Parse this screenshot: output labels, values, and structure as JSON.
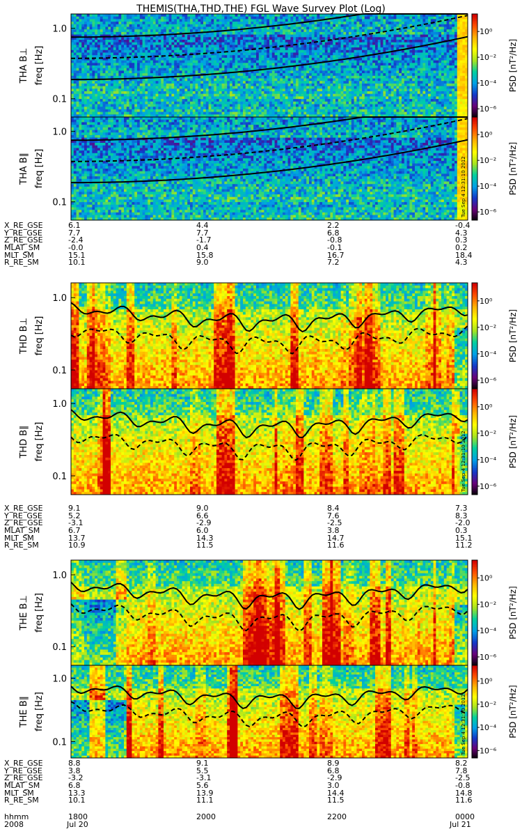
{
  "chart_data": {
    "type": "heatmap",
    "title": "THEMIS(THA,THD,THE) FGL Wave Survey Plot (Log)",
    "x_axis": {
      "range_label": [
        "1800",
        "0000"
      ],
      "tick_labels": [
        "1800",
        "2000",
        "2200",
        "0000"
      ],
      "date_labels": [
        "Jul 20",
        "",
        "",
        "Jul 21"
      ],
      "row_label_time": "hhmm",
      "row_label_year": "2008"
    },
    "colorbar": {
      "label": "PSD [nT²/Hz]",
      "scale": "log",
      "tick_labels": [
        "10⁰",
        "10⁻²",
        "10⁻⁴",
        "10⁻⁶"
      ],
      "colors": [
        "#000000",
        "#6a0078",
        "#1438c8",
        "#00a0e6",
        "#00d0a0",
        "#a8e41e",
        "#ffff00",
        "#ffb400",
        "#ff5000",
        "#d20000"
      ]
    },
    "stamp_text": "Tue Sep  4 12:31:10 2012",
    "panels": [
      {
        "probe": "THA",
        "component": "B⊥",
        "title": "THA B⊥",
        "ylabel": "freq [Hz]",
        "yscale": "log",
        "ylim": [
          0.055,
          1.6
        ],
        "ytick_labels": [
          "1.0",
          "0.1"
        ],
        "intensity": "low"
      },
      {
        "probe": "THA",
        "component": "B∥",
        "title": "THA B∥",
        "ylabel": "freq [Hz]",
        "yscale": "log",
        "ylim": [
          0.055,
          1.6
        ],
        "ytick_labels": [
          "1.0",
          "0.1"
        ],
        "intensity": "low"
      },
      {
        "probe": "THD",
        "component": "B⊥",
        "title": "THD B⊥",
        "ylabel": "freq [Hz]",
        "yscale": "log",
        "ylim": [
          0.055,
          1.6
        ],
        "ytick_labels": [
          "1.0",
          "0.1"
        ],
        "intensity": "high"
      },
      {
        "probe": "THD",
        "component": "B∥",
        "title": "THD B∥",
        "ylabel": "freq [Hz]",
        "yscale": "log",
        "ylim": [
          0.055,
          1.6
        ],
        "ytick_labels": [
          "1.0",
          "0.1"
        ],
        "intensity": "high"
      },
      {
        "probe": "THE",
        "component": "B⊥",
        "title": "THE B⊥",
        "ylabel": "freq [Hz]",
        "yscale": "log",
        "ylim": [
          0.055,
          1.6
        ],
        "ytick_labels": [
          "1.0",
          "0.1"
        ],
        "intensity": "high"
      },
      {
        "probe": "THE",
        "component": "B∥",
        "title": "THE B∥",
        "ylabel": "freq [Hz]",
        "yscale": "log",
        "ylim": [
          0.055,
          1.6
        ],
        "ytick_labels": [
          "1.0",
          "0.1"
        ],
        "intensity": "high"
      }
    ]
  },
  "ephemeris": [
    {
      "probe": "THA",
      "rows": [
        {
          "label": "X_RE_GSE",
          "values": [
            "6.1",
            "4.4",
            "2.2",
            "-0.4"
          ]
        },
        {
          "label": "Y_RE_GSE",
          "values": [
            "7.7",
            "7.7",
            "6.8",
            "4.3"
          ]
        },
        {
          "label": "Z_RE_GSE",
          "values": [
            "-2.4",
            "-1.7",
            "-0.8",
            "0.3"
          ]
        },
        {
          "label": "MLAT_SM",
          "values": [
            "-0.0",
            "0.4",
            "-0.1",
            "0.2"
          ]
        },
        {
          "label": "MLT_SM",
          "values": [
            "15.1",
            "15.8",
            "16.7",
            "18.4"
          ]
        },
        {
          "label": "R_RE_SM",
          "values": [
            "10.1",
            "9.0",
            "7.2",
            "4.3"
          ]
        }
      ]
    },
    {
      "probe": "THD",
      "rows": [
        {
          "label": "X_RE_GSE",
          "values": [
            "9.1",
            "9.0",
            "8.4",
            "7.3"
          ]
        },
        {
          "label": "Y_RE_GSE",
          "values": [
            "5.2",
            "6.6",
            "7.6",
            "8.3"
          ]
        },
        {
          "label": "Z_RE_GSE",
          "values": [
            "-3.1",
            "-2.9",
            "-2.5",
            "-2.0"
          ]
        },
        {
          "label": "MLAT_SM",
          "values": [
            "6.7",
            "6.0",
            "3.8",
            "0.3"
          ]
        },
        {
          "label": "MLT_SM",
          "values": [
            "13.7",
            "14.3",
            "14.7",
            "15.1"
          ]
        },
        {
          "label": "R_RE_SM",
          "values": [
            "10.9",
            "11.5",
            "11.6",
            "11.2"
          ]
        }
      ]
    },
    {
      "probe": "THE",
      "rows": [
        {
          "label": "X_RE_GSE",
          "values": [
            "8.8",
            "9.1",
            "8.9",
            "8.2"
          ]
        },
        {
          "label": "Y_RE_GSE",
          "values": [
            "3.8",
            "5.5",
            "6.8",
            "7.8"
          ]
        },
        {
          "label": "Z_RE_GSE",
          "values": [
            "-3.2",
            "-3.1",
            "-2.9",
            "-2.5"
          ]
        },
        {
          "label": "MLAT_SM",
          "values": [
            "6.8",
            "5.6",
            "3.0",
            "-0.8"
          ]
        },
        {
          "label": "MLT_SM",
          "values": [
            "13.3",
            "13.9",
            "14.4",
            "14.8"
          ]
        },
        {
          "label": "R_RE_SM",
          "values": [
            "10.1",
            "11.1",
            "11.5",
            "11.6"
          ]
        }
      ]
    }
  ]
}
